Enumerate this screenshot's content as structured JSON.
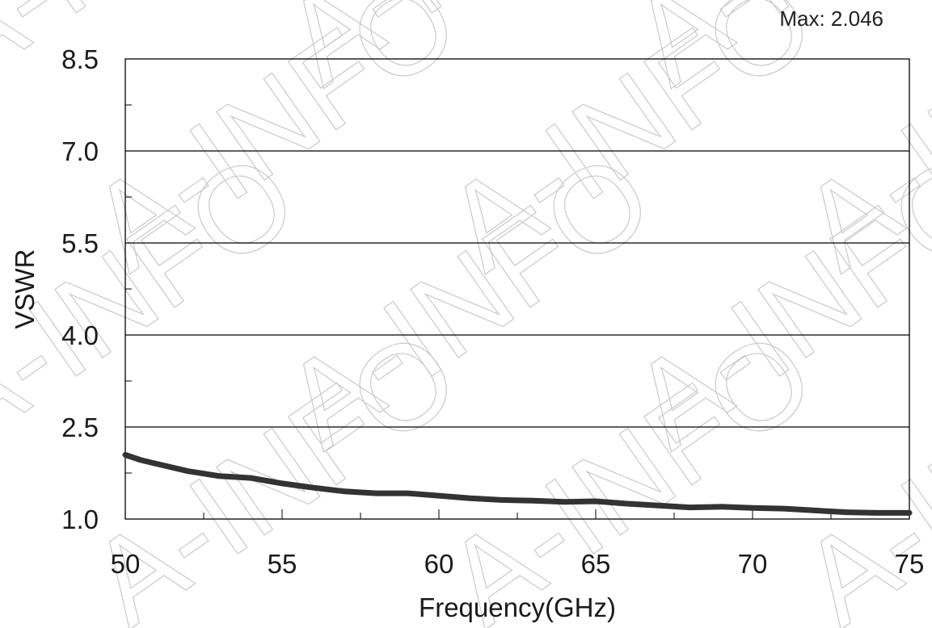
{
  "watermark": "A-INFO",
  "chart_data": {
    "type": "line",
    "title": "",
    "annotation": "Max: 2.046",
    "xlabel": "Frequency(GHz)",
    "ylabel": "VSWR",
    "xlim": [
      50,
      75
    ],
    "ylim": [
      1.0,
      8.5
    ],
    "x_ticks": [
      "50",
      "55",
      "60",
      "65",
      "70",
      "75"
    ],
    "y_ticks": [
      "1.0",
      "2.5",
      "4.0",
      "5.5",
      "7.0",
      "8.5"
    ],
    "grid": "horizontal",
    "series": [
      {
        "color": "#333333",
        "x": [
          50,
          50.5,
          51,
          52,
          53,
          54,
          55,
          56,
          57,
          58,
          59,
          60,
          61,
          62,
          63,
          64,
          65,
          66,
          67,
          68,
          69,
          70,
          71,
          72,
          73,
          74,
          75
        ],
        "y": [
          2.046,
          1.96,
          1.9,
          1.78,
          1.7,
          1.67,
          1.58,
          1.51,
          1.45,
          1.42,
          1.42,
          1.38,
          1.34,
          1.31,
          1.3,
          1.28,
          1.29,
          1.25,
          1.22,
          1.19,
          1.2,
          1.18,
          1.17,
          1.14,
          1.11,
          1.1,
          1.1
        ]
      }
    ]
  }
}
